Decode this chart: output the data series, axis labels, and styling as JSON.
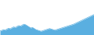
{
  "values": [
    55,
    57,
    60,
    58,
    62,
    65,
    63,
    67,
    70,
    68,
    72,
    75,
    73,
    77,
    80,
    78,
    74,
    70,
    66,
    68,
    64,
    60,
    58,
    56,
    54,
    56,
    58,
    60,
    62,
    64,
    62,
    60,
    58,
    60,
    62,
    64,
    66,
    68,
    70,
    72,
    74,
    76,
    78,
    80,
    83,
    86,
    89,
    92,
    95,
    98,
    101,
    104,
    107,
    110,
    113,
    116
  ],
  "line_color": "#5aafe0",
  "fill_color": "#5aafe0",
  "background_color": "#ffffff",
  "ylim_min": 40,
  "ylim_max": 170
}
